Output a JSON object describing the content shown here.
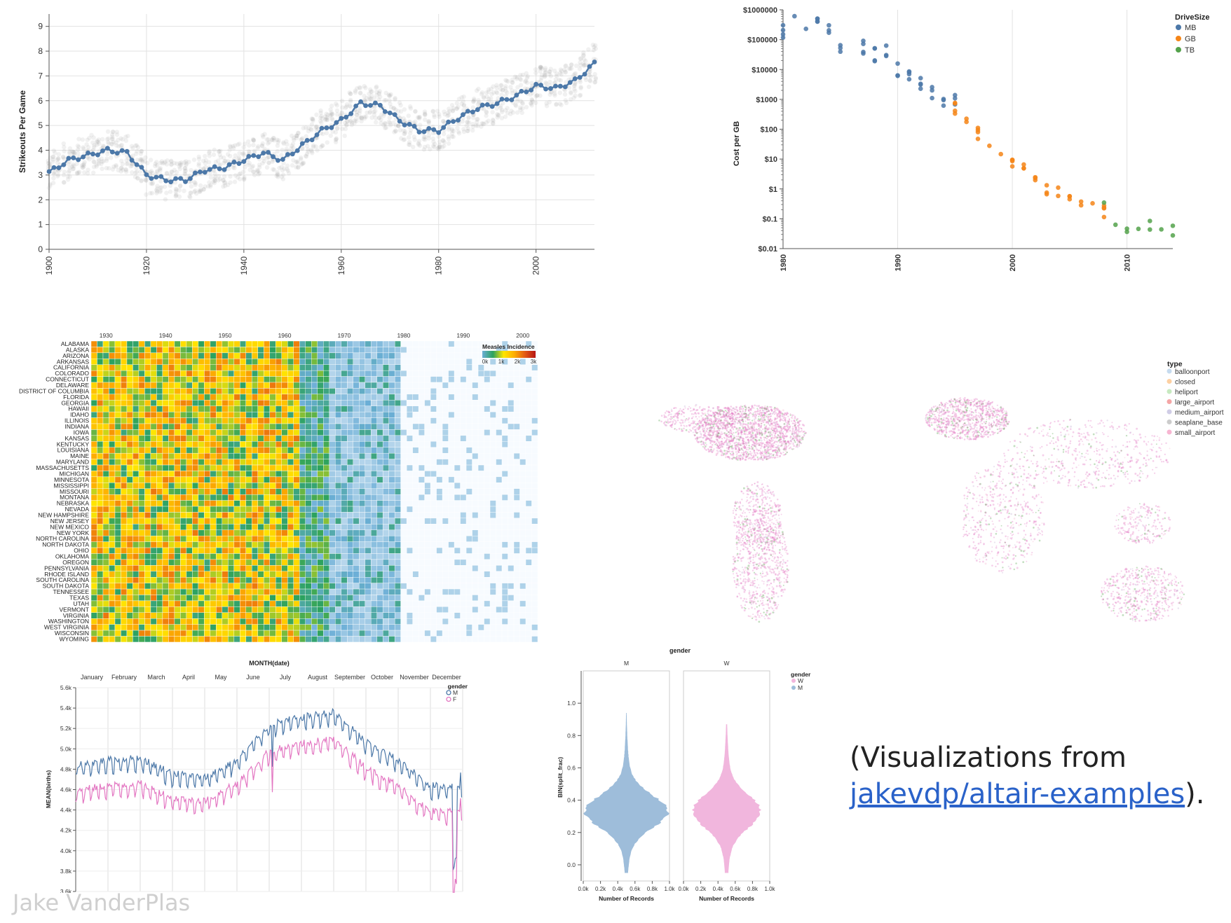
{
  "caption": {
    "prefix": "(Visualizations from ",
    "link": "jakevdp/altair-examples",
    "suffix": ")."
  },
  "author": "Jake VanderPlas",
  "colors": {
    "blue": "#4c78a8",
    "orange": "#f58518",
    "green": "#54a24b",
    "pink": "#e377c2",
    "violinBlue": "#9ebdda",
    "violinPink": "#f1b6dd"
  },
  "chart_data": [
    {
      "id": "strikeouts",
      "type": "line",
      "ylabel": "Strikeouts Per Game",
      "xlim": [
        1900,
        2012
      ],
      "ylim": [
        0,
        9.5
      ],
      "xticks": [
        "1900",
        "1920",
        "1940",
        "1960",
        "1980",
        "2000"
      ],
      "yticks": [
        "0",
        "1",
        "2",
        "3",
        "4",
        "5",
        "6",
        "7",
        "8",
        "9"
      ],
      "x": [
        1900,
        1904,
        1908,
        1912,
        1916,
        1920,
        1924,
        1928,
        1932,
        1936,
        1940,
        1944,
        1948,
        1952,
        1956,
        1960,
        1964,
        1968,
        1972,
        1976,
        1980,
        1984,
        1988,
        1992,
        1996,
        2000,
        2004,
        2008,
        2012
      ],
      "values": [
        3.1,
        3.6,
        3.8,
        4.0,
        3.9,
        3.0,
        2.8,
        2.8,
        3.2,
        3.3,
        3.6,
        3.9,
        3.6,
        4.2,
        4.8,
        5.2,
        5.9,
        5.8,
        5.2,
        4.8,
        4.8,
        5.3,
        5.7,
        5.9,
        6.2,
        6.6,
        6.5,
        6.8,
        7.5
      ]
    },
    {
      "id": "drivecost",
      "type": "scatter",
      "ylabel": "Cost per GB",
      "yscale": "log",
      "xlim": [
        1980,
        2014
      ],
      "ylim": [
        0.01,
        1000000
      ],
      "xticks": [
        "1980",
        "1990",
        "2000",
        "2010"
      ],
      "yticks": [
        "$0.01",
        "$0.1",
        "$1",
        "$10",
        "$100",
        "$1000",
        "$10000",
        "$100000",
        "$1000000"
      ],
      "legend": {
        "title": "DriveSize",
        "items": [
          "MB",
          "GB",
          "TB"
        ]
      },
      "series": [
        {
          "name": "MB",
          "x": [
            1980,
            1981,
            1982,
            1983,
            1984,
            1985,
            1987,
            1988,
            1989,
            1990,
            1991,
            1992,
            1993,
            1994,
            1995
          ],
          "values": [
            200000,
            500000,
            250000,
            300000,
            200000,
            70000,
            60000,
            30000,
            40000,
            9000,
            6000,
            3000,
            1500,
            1000,
            900
          ]
        },
        {
          "name": "GB",
          "x": [
            1995,
            1996,
            1997,
            1998,
            1999,
            2000,
            2001,
            2002,
            2003,
            2004,
            2005,
            2006,
            2007,
            2008
          ],
          "values": [
            500,
            150,
            80,
            30,
            12,
            8,
            4,
            2,
            1,
            0.7,
            0.5,
            0.4,
            0.3,
            0.2
          ]
        },
        {
          "name": "TB",
          "x": [
            2008,
            2009,
            2010,
            2011,
            2012,
            2013,
            2014
          ],
          "values": [
            0.2,
            0.07,
            0.06,
            0.05,
            0.05,
            0.04,
            0.035
          ]
        }
      ]
    },
    {
      "id": "measles",
      "type": "heatmap",
      "xticks": [
        "1930",
        "1940",
        "1950",
        "1960",
        "1970",
        "1980",
        "1990",
        "2000"
      ],
      "legend": {
        "title": "Measles Incidence",
        "ticks": [
          "0k",
          "1k",
          "2k",
          "3k"
        ]
      },
      "rows": [
        "ALABAMA",
        "ALASKA",
        "ARIZONA",
        "ARKANSAS",
        "CALIFORNIA",
        "COLORADO",
        "CONNECTICUT",
        "DELAWARE",
        "DISTRICT OF COLUMBIA",
        "FLORIDA",
        "GEORGIA",
        "HAWAII",
        "IDAHO",
        "ILLINOIS",
        "INDIANA",
        "IOWA",
        "KANSAS",
        "KENTUCKY",
        "LOUISIANA",
        "MAINE",
        "MARYLAND",
        "MASSACHUSETTS",
        "MICHIGAN",
        "MINNESOTA",
        "MISSISSIPPI",
        "MISSOURI",
        "MONTANA",
        "NEBRASKA",
        "NEVADA",
        "NEW HAMPSHIRE",
        "NEW JERSEY",
        "NEW MEXICO",
        "NEW YORK",
        "NORTH CAROLINA",
        "NORTH DAKOTA",
        "OHIO",
        "OKLAHOMA",
        "OREGON",
        "PENNSYLVANIA",
        "RHODE ISLAND",
        "SOUTH CAROLINA",
        "SOUTH DAKOTA",
        "TENNESSEE",
        "TEXAS",
        "UTAH",
        "VERMONT",
        "VIRGINIA",
        "WASHINGTON",
        "WEST VIRGINIA",
        "WISCONSIN",
        "WYOMING"
      ]
    },
    {
      "id": "airports",
      "type": "scatter",
      "legend": {
        "title": "type",
        "items": [
          "balloonport",
          "closed",
          "heliport",
          "large_airport",
          "medium_airport",
          "seaplane_base",
          "small_airport"
        ]
      }
    },
    {
      "id": "births",
      "type": "line",
      "title": "MONTH(date)",
      "ylabel": "MEAN(births)",
      "months": [
        "January",
        "February",
        "March",
        "April",
        "May",
        "June",
        "July",
        "August",
        "September",
        "October",
        "November",
        "December"
      ],
      "yticks": [
        "3.6k",
        "3.8k",
        "4.0k",
        "4.2k",
        "4.4k",
        "4.6k",
        "4.8k",
        "5.0k",
        "5.2k",
        "5.4k",
        "5.6k"
      ],
      "ylim": [
        3600,
        5600
      ],
      "legend": {
        "title": "gender",
        "items": [
          "M",
          "F"
        ]
      },
      "series": [
        {
          "name": "M",
          "values": [
            4800,
            4850,
            4870,
            4720,
            4680,
            4850,
            5200,
            5270,
            5320,
            5030,
            4850,
            4600
          ]
        },
        {
          "name": "F",
          "values": [
            4550,
            4600,
            4620,
            4480,
            4450,
            4620,
            4940,
            5010,
            5060,
            4780,
            4600,
            4350
          ]
        }
      ]
    },
    {
      "id": "violin",
      "type": "area",
      "title": "gender",
      "ylabel": "BIN(split_frac)",
      "xlabel": "Number of Records",
      "facets": [
        "M",
        "W"
      ],
      "xticks": [
        "0.0k",
        "0.2k",
        "0.4k",
        "0.6k",
        "0.8k",
        "1.0k"
      ],
      "yticks": [
        "0.0",
        "0.2",
        "0.4",
        "0.6",
        "0.8",
        "1.0"
      ],
      "legend": {
        "title": "gender",
        "items": [
          "W",
          "M"
        ]
      }
    }
  ]
}
